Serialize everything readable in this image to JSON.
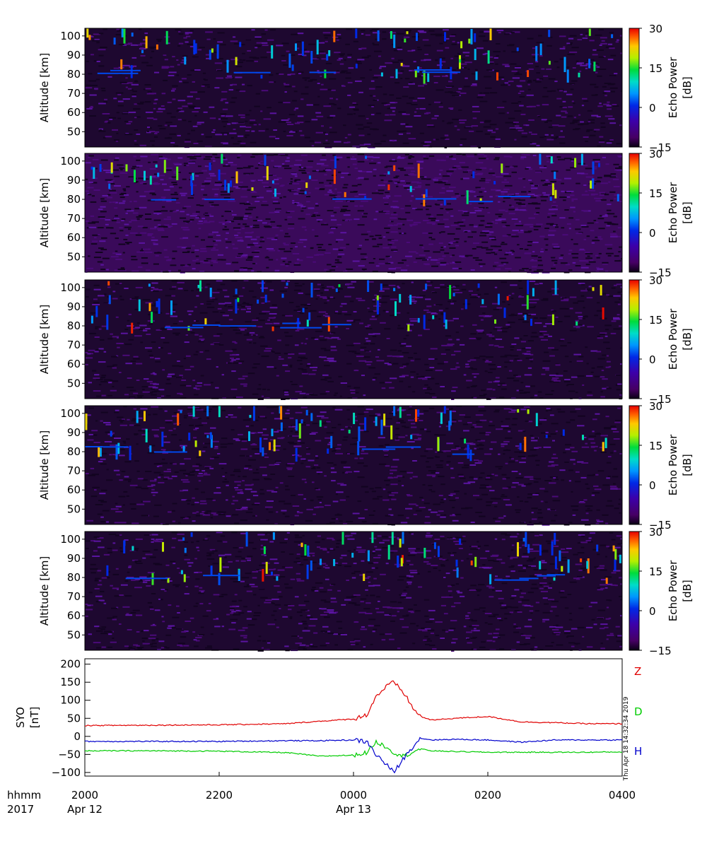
{
  "panels": [
    {
      "ylabel": "Altitude [km]",
      "yticks": [
        "100",
        "90",
        "80",
        "70",
        "60",
        "50"
      ],
      "colorbar_label_1": "Echo Power",
      "colorbar_label_2": "[dB]",
      "colorbar_ticks": [
        "30",
        "15",
        "0",
        "−15"
      ]
    },
    {
      "ylabel": "Altitude [km]",
      "yticks": [
        "100",
        "90",
        "80",
        "70",
        "60",
        "50"
      ],
      "colorbar_label_1": "Echo Power",
      "colorbar_label_2": "[dB]",
      "colorbar_ticks": [
        "30",
        "15",
        "0",
        "−15"
      ]
    },
    {
      "ylabel": "Altitude [km]",
      "yticks": [
        "100",
        "90",
        "80",
        "70",
        "60",
        "50"
      ],
      "colorbar_label_1": "Echo Power",
      "colorbar_label_2": "[dB]",
      "colorbar_ticks": [
        "30",
        "15",
        "0",
        "−15"
      ]
    },
    {
      "ylabel": "Altitude [km]",
      "yticks": [
        "100",
        "90",
        "80",
        "70",
        "60",
        "50"
      ],
      "colorbar_label_1": "Echo Power",
      "colorbar_label_2": "[dB]",
      "colorbar_ticks": [
        "30",
        "15",
        "0",
        "−15"
      ]
    },
    {
      "ylabel": "Altitude [km]",
      "yticks": [
        "100",
        "90",
        "80",
        "70",
        "60",
        "50"
      ],
      "colorbar_label_1": "Echo Power",
      "colorbar_label_2": "[dB]",
      "colorbar_ticks": [
        "30",
        "15",
        "0",
        "−15"
      ]
    }
  ],
  "mag": {
    "ylabel_1": "SYO",
    "ylabel_2": "[nT]",
    "yticks": [
      "200",
      "150",
      "100",
      "50",
      "0",
      "−50",
      "−100"
    ],
    "timestamp": "Thu Apr 18 14:32:34 2019",
    "legend": [
      "Z",
      "D",
      "H"
    ]
  },
  "xaxis": {
    "left_label_1": "hhmm",
    "left_label_2": "2017",
    "ticks": [
      "2000",
      "2200",
      "0000",
      "0200",
      "0400"
    ],
    "dates": [
      "Apr 12",
      "",
      "Apr 13",
      "",
      ""
    ]
  },
  "chart_data": [
    {
      "type": "heatmap",
      "xlabel": "",
      "ylabel": "Altitude [km]",
      "xlim": [
        "2017-04-12 20:00",
        "2017-04-13 04:00"
      ],
      "ylim": [
        42,
        104
      ],
      "zlabel": "Echo Power [dB]",
      "zlim": [
        -15,
        30
      ],
      "colormap": "rainbow (purple to red)"
    },
    {
      "type": "heatmap",
      "ylabel": "Altitude [km]",
      "xlim": [
        "2017-04-12 20:00",
        "2017-04-13 04:00"
      ],
      "ylim": [
        42,
        104
      ],
      "zlabel": "Echo Power [dB]",
      "zlim": [
        -15,
        30
      ]
    },
    {
      "type": "heatmap",
      "ylabel": "Altitude [km]",
      "xlim": [
        "2017-04-12 20:00",
        "2017-04-13 04:00"
      ],
      "ylim": [
        42,
        104
      ],
      "zlabel": "Echo Power [dB]",
      "zlim": [
        -15,
        30
      ]
    },
    {
      "type": "heatmap",
      "ylabel": "Altitude [km]",
      "xlim": [
        "2017-04-12 20:00",
        "2017-04-13 04:00"
      ],
      "ylim": [
        42,
        104
      ],
      "zlabel": "Echo Power [dB]",
      "zlim": [
        -15,
        30
      ]
    },
    {
      "type": "heatmap",
      "ylabel": "Altitude [km]",
      "xlim": [
        "2017-04-12 20:00",
        "2017-04-13 04:00"
      ],
      "ylim": [
        42,
        104
      ],
      "zlabel": "Echo Power [dB]",
      "zlim": [
        -15,
        30
      ]
    },
    {
      "type": "line",
      "ylabel": "SYO [nT]",
      "ylim": [
        -110,
        215
      ],
      "x": [
        "20:00",
        "21:00",
        "22:00",
        "23:00",
        "23:30",
        "00:00",
        "00:12",
        "00:20",
        "00:30",
        "00:36",
        "00:45",
        "00:55",
        "01:00",
        "01:10",
        "01:30",
        "02:00",
        "02:30",
        "03:00",
        "03:30",
        "04:00"
      ],
      "series": [
        {
          "name": "Z",
          "color": "#e00000",
          "values": [
            30,
            31,
            32,
            35,
            42,
            48,
            60,
            110,
            140,
            150,
            120,
            70,
            55,
            45,
            50,
            55,
            40,
            38,
            35,
            35
          ]
        },
        {
          "name": "D",
          "color": "#00cc00",
          "values": [
            -40,
            -40,
            -41,
            -45,
            -55,
            -52,
            -45,
            -15,
            -30,
            -45,
            -55,
            -40,
            -35,
            -40,
            -42,
            -44,
            -44,
            -44,
            -44,
            -43
          ]
        },
        {
          "name": "H",
          "color": "#0000cc",
          "values": [
            -14,
            -14,
            -14,
            -12,
            -12,
            -10,
            -15,
            -50,
            -80,
            -100,
            -60,
            -20,
            -5,
            -10,
            -8,
            -10,
            -16,
            -10,
            -10,
            -10
          ]
        }
      ]
    }
  ]
}
